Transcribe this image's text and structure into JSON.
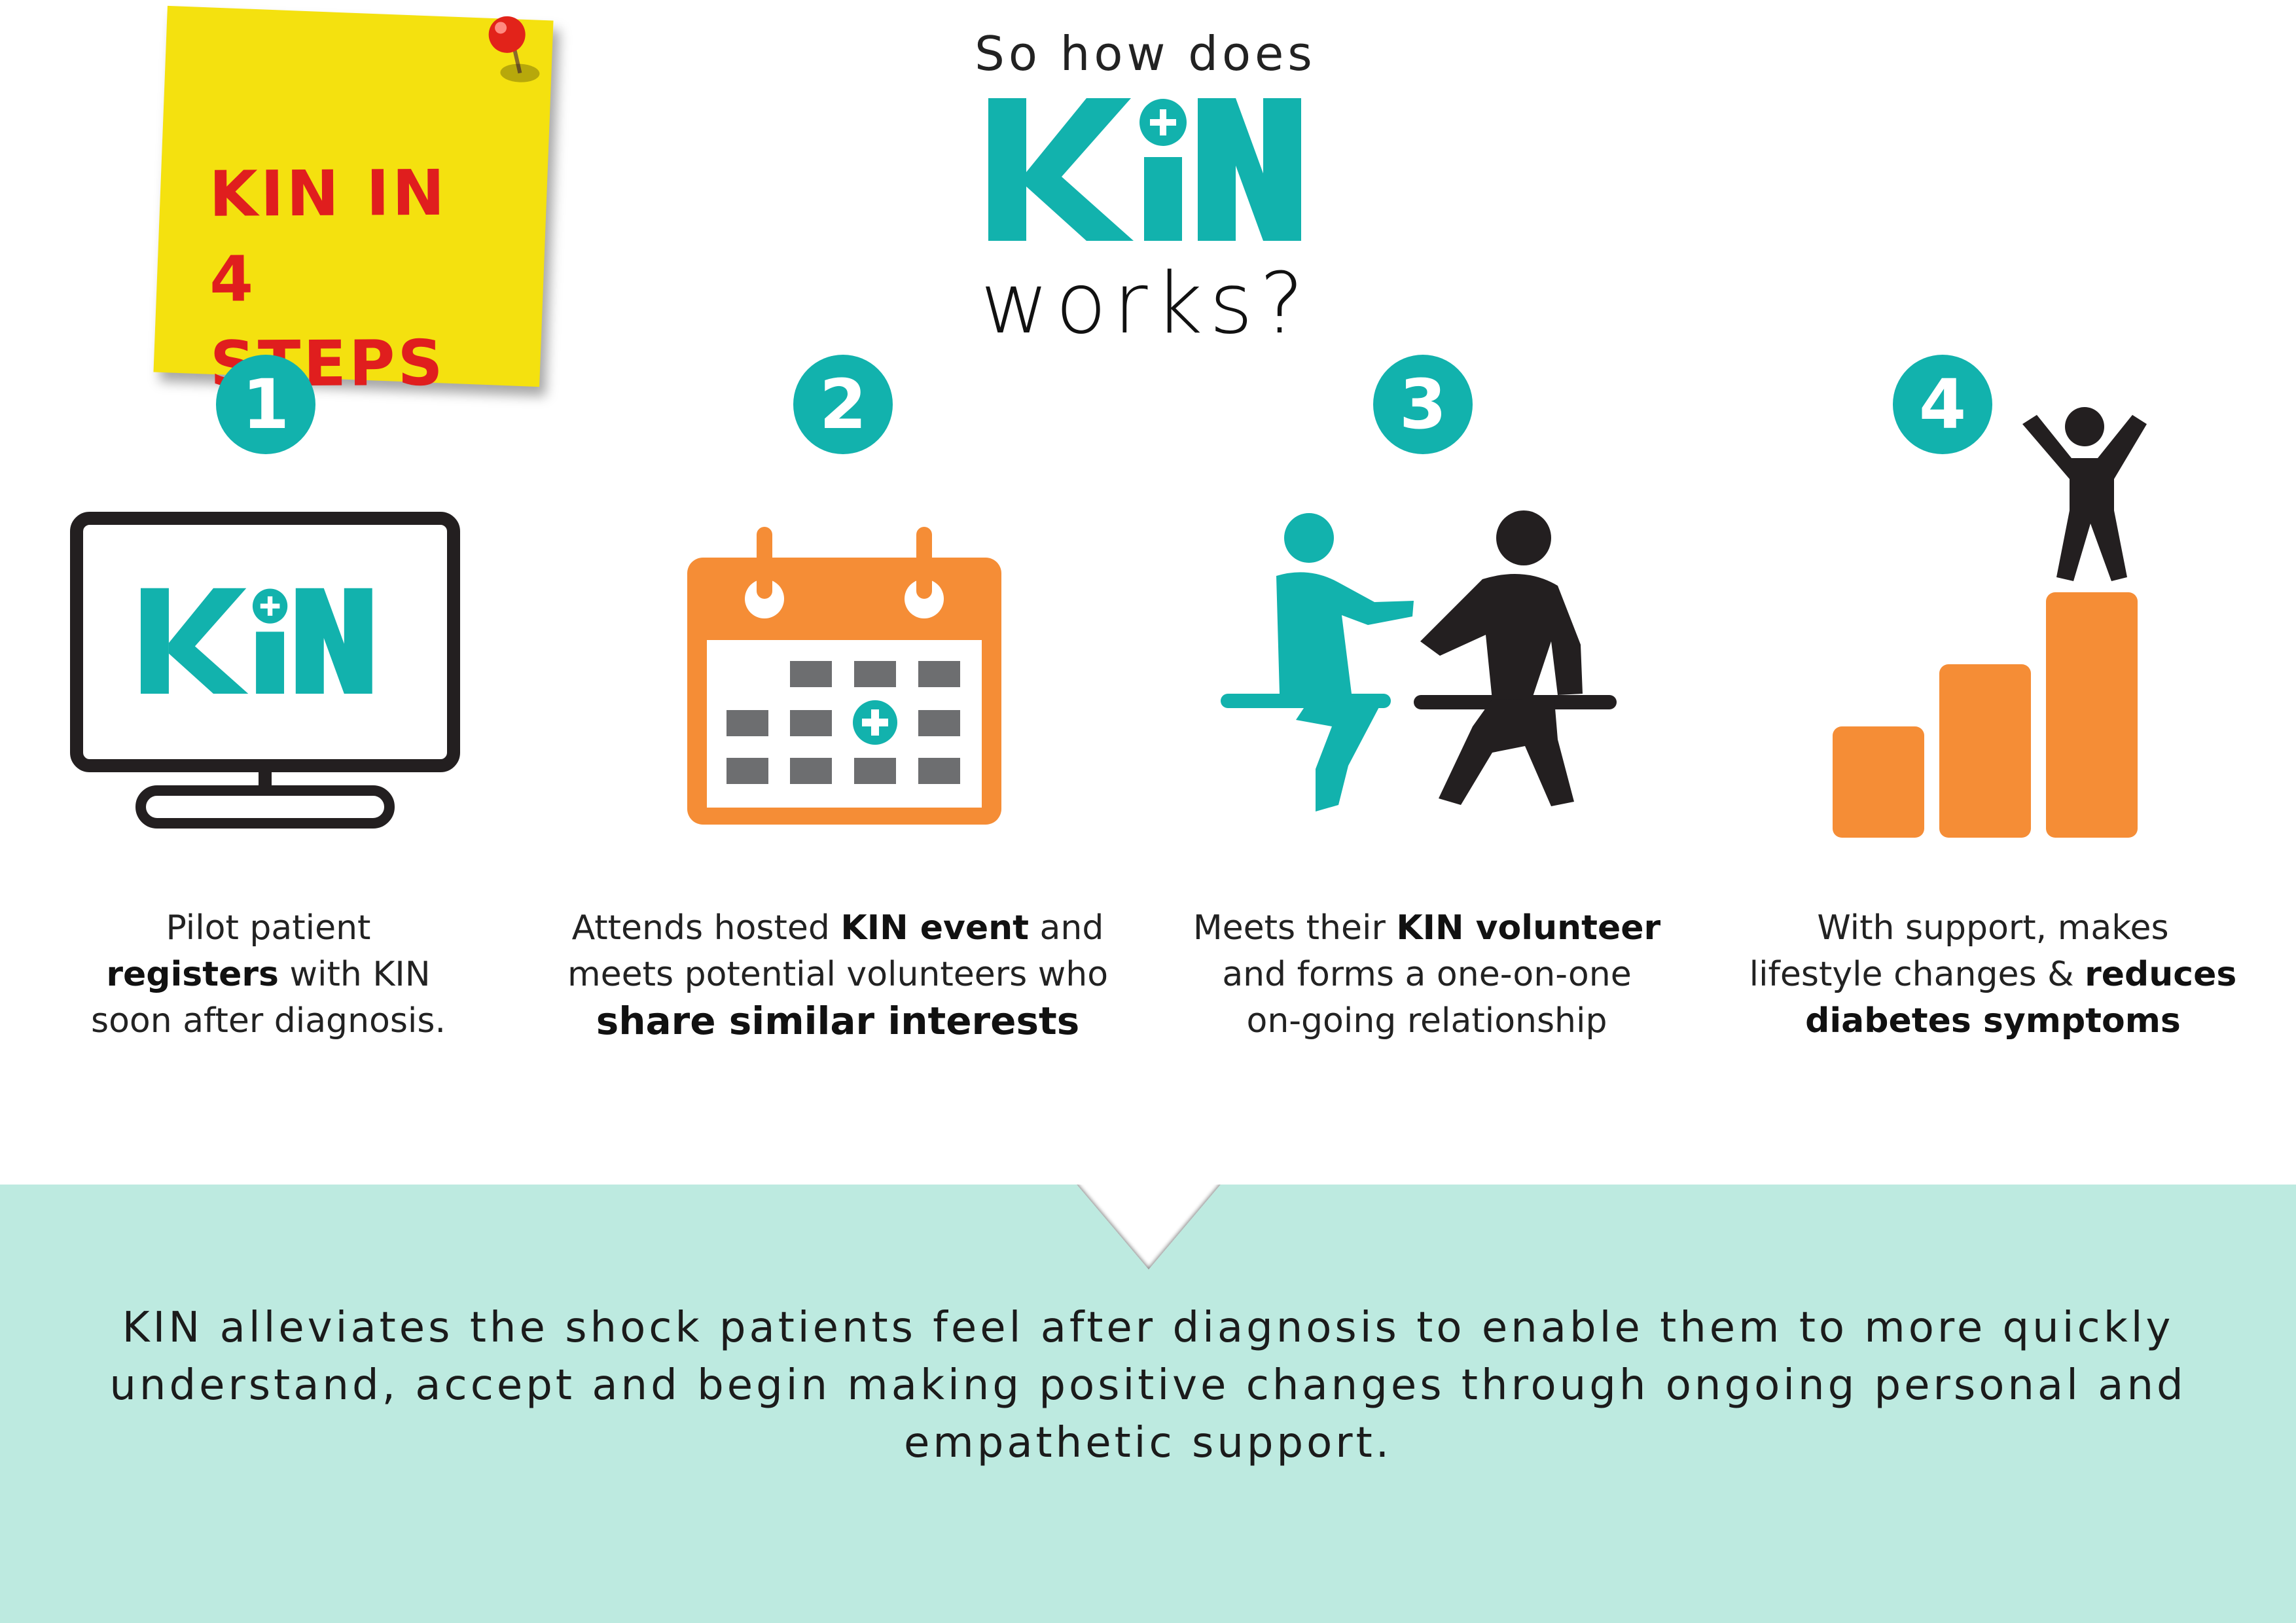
{
  "sticky_note": {
    "line1": "KIN IN",
    "line2": "4 STEPS"
  },
  "header": {
    "top": "So how does",
    "logo": "KiN",
    "bottom": "works?"
  },
  "brand": {
    "teal": "#12b2ad",
    "orange": "#f58d36",
    "dark": "#231f20",
    "grey": "#6d6e70",
    "panel": "#bdeae0",
    "sticky": "#f4e10f",
    "sticky_text": "#e01e1e"
  },
  "steps": [
    {
      "number": "1",
      "icon": "monitor-with-kin-logo-icon",
      "icon_text": "KiN",
      "caption": [
        {
          "t": "Pilot patient",
          "b": false
        },
        {
          "t": "registers",
          "b": true
        },
        {
          "t": " with KIN",
          "b": false
        },
        {
          "t": "soon after diagnosis.",
          "b": false
        }
      ]
    },
    {
      "number": "2",
      "icon": "calendar-icon",
      "caption": [
        {
          "t": "Attends hosted ",
          "b": false
        },
        {
          "t": "KIN event",
          "b": true
        },
        {
          "t": " and",
          "b": false
        },
        {
          "t": "meets potential volunteers who",
          "b": false
        },
        {
          "t": "share similar interests",
          "b": true
        }
      ]
    },
    {
      "number": "3",
      "icon": "two-people-sitting-icon",
      "caption": [
        {
          "t": "Meets their ",
          "b": false
        },
        {
          "t": "KIN volunteer",
          "b": true
        },
        {
          "t": "and forms a one-on-one",
          "b": false
        },
        {
          "t": "on-going relationship",
          "b": false
        }
      ]
    },
    {
      "number": "4",
      "icon": "growth-bars-person-icon",
      "caption": [
        {
          "t": "With support, makes",
          "b": false
        },
        {
          "t": "lifestyle changes & ",
          "b": false
        },
        {
          "t": "reduces",
          "b": true
        },
        {
          "t": "diabetes symptoms",
          "b": true
        }
      ]
    }
  ],
  "summary": "KIN alleviates the shock patients feel after diagnosis to enable them to more quickly understand, accept and begin making positive changes through ongoing personal and empathetic support."
}
